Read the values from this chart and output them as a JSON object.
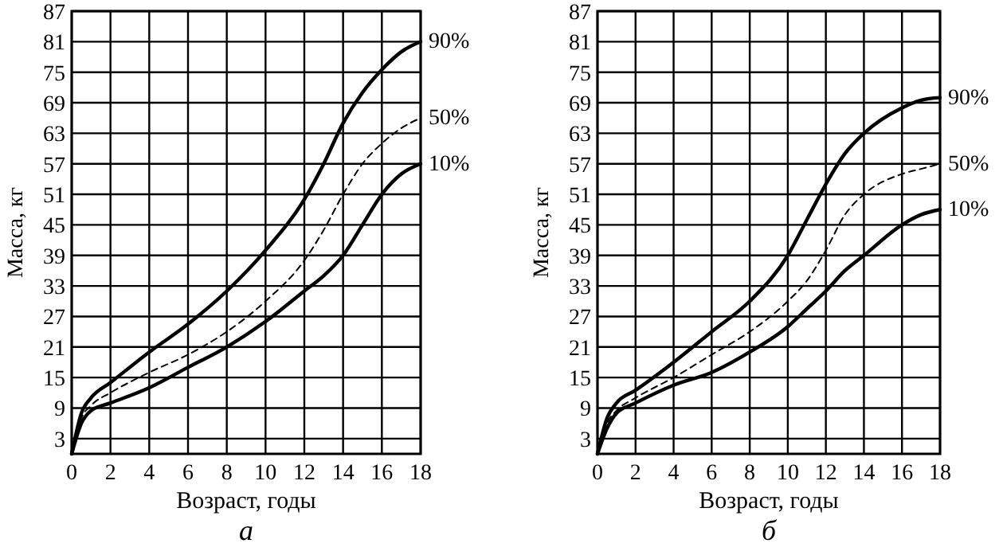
{
  "chart_data": [
    {
      "type": "line",
      "title": "а",
      "xlabel": "Возраст, годы",
      "ylabel": "Масса, кг",
      "xlim": [
        0,
        18
      ],
      "xticks": [
        0,
        2,
        4,
        6,
        8,
        10,
        12,
        14,
        16,
        18
      ],
      "ylim": [
        0,
        87
      ],
      "yticks": [
        3,
        9,
        15,
        21,
        27,
        33,
        39,
        45,
        51,
        57,
        63,
        69,
        75,
        81,
        87
      ],
      "grid": true,
      "color": "#000000",
      "x": [
        0,
        0.5,
        1,
        2,
        4,
        6,
        8,
        10,
        12,
        13,
        14,
        15,
        16,
        17,
        18
      ],
      "series": [
        {
          "name": "90%",
          "line_style": "solid",
          "values": [
            0,
            8,
            11,
            14,
            20,
            25.5,
            32,
            40,
            50,
            57,
            65,
            71,
            75.5,
            79,
            81
          ]
        },
        {
          "name": "50%",
          "line_style": "dashed",
          "values": [
            0,
            7,
            9.5,
            12,
            16,
            19.5,
            24,
            30,
            38,
            44,
            51,
            57,
            61,
            64,
            66
          ]
        },
        {
          "name": "10%",
          "line_style": "solid",
          "values": [
            0,
            6,
            8.5,
            10,
            13,
            17,
            21,
            26,
            32,
            35,
            39,
            45,
            51,
            55,
            57
          ]
        }
      ]
    },
    {
      "type": "line",
      "title": "б",
      "xlabel": "Возраст, годы",
      "ylabel": "Масса, кг",
      "xlim": [
        0,
        18
      ],
      "xticks": [
        0,
        2,
        4,
        6,
        8,
        10,
        12,
        14,
        16,
        18
      ],
      "ylim": [
        0,
        87
      ],
      "yticks": [
        3,
        9,
        15,
        21,
        27,
        33,
        39,
        45,
        51,
        57,
        63,
        69,
        75,
        81,
        87
      ],
      "grid": true,
      "color": "#000000",
      "x": [
        0,
        0.5,
        1,
        2,
        4,
        6,
        8,
        10,
        11,
        12,
        13,
        14,
        16,
        17,
        18
      ],
      "series": [
        {
          "name": "90%",
          "line_style": "solid",
          "values": [
            0,
            7,
            10,
            12.5,
            18,
            24,
            30,
            39,
            46,
            53,
            59,
            63,
            68,
            69.5,
            70
          ]
        },
        {
          "name": "50%",
          "line_style": "dashed",
          "values": [
            0,
            6,
            8.5,
            11,
            15,
            19.5,
            24,
            30,
            34,
            40,
            47,
            51,
            55,
            56,
            57
          ]
        },
        {
          "name": "10%",
          "line_style": "solid",
          "values": [
            0,
            5,
            8,
            10,
            13.5,
            16,
            20,
            25,
            28.5,
            32,
            36,
            39,
            45,
            47,
            48
          ]
        }
      ]
    }
  ]
}
